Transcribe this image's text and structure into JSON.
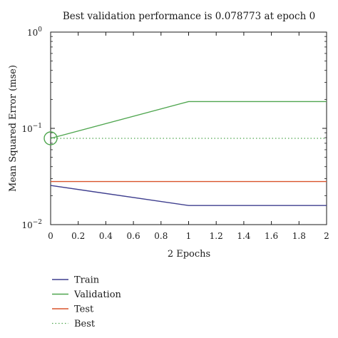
{
  "chart_data": {
    "type": "line",
    "title": "Best validation performance is 0.078773 at epoch 0",
    "xlabel": "2 Epochs",
    "ylabel": "Mean Squared Error (mse)",
    "xlim": [
      0,
      2
    ],
    "ylim": [
      0.01,
      1
    ],
    "yscale": "log",
    "grid": false,
    "legend_position": "bottom-left",
    "x_ticks": [
      "0",
      "0.2",
      "0.4",
      "0.6",
      "0.8",
      "1",
      "1.2",
      "1.4",
      "1.6",
      "1.8",
      "2"
    ],
    "y_ticks": [
      {
        "base": "10",
        "exp": "0",
        "value": 1
      },
      {
        "base": "10",
        "exp": "−1",
        "value": 0.1
      },
      {
        "base": "10",
        "exp": "−2",
        "value": 0.01
      }
    ],
    "series": [
      {
        "name": "Train",
        "color": "#3f3f8f",
        "style": "solid",
        "x": [
          0,
          1,
          2
        ],
        "y": [
          0.0255,
          0.0158,
          0.0158
        ]
      },
      {
        "name": "Validation",
        "color": "#4fa64f",
        "style": "solid",
        "x": [
          0,
          1,
          2
        ],
        "y": [
          0.078773,
          0.19,
          0.19
        ]
      },
      {
        "name": "Test",
        "color": "#d9532b",
        "style": "solid",
        "x": [
          0,
          1,
          2
        ],
        "y": [
          0.028,
          0.028,
          0.028
        ]
      },
      {
        "name": "Best",
        "color": "#4fa64f",
        "style": "dotted",
        "x": [
          0,
          2
        ],
        "y": [
          0.078773,
          0.078773
        ]
      }
    ],
    "best_marker": {
      "x": 0,
      "y": 0.078773,
      "shape": "circle",
      "color": "#4fa64f"
    }
  }
}
